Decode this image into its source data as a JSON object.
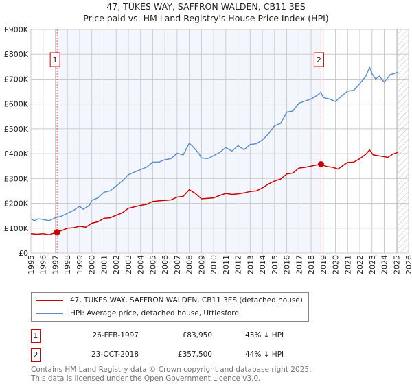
{
  "title": "47, TUKES WAY, SAFFRON WALDEN, CB11 3ES",
  "subtitle": "Price paid vs. HM Land Registry's House Price Index (HPI)",
  "chart_data": {
    "type": "line",
    "xlim": [
      1995,
      2026
    ],
    "ylim": [
      0,
      900000
    ],
    "yticks": [
      {
        "v": 0,
        "label": "£0"
      },
      {
        "v": 100000,
        "label": "£100K"
      },
      {
        "v": 200000,
        "label": "£200K"
      },
      {
        "v": 300000,
        "label": "£300K"
      },
      {
        "v": 400000,
        "label": "£400K"
      },
      {
        "v": 500000,
        "label": "£500K"
      },
      {
        "v": 600000,
        "label": "£600K"
      },
      {
        "v": 700000,
        "label": "£700K"
      },
      {
        "v": 800000,
        "label": "£800K"
      },
      {
        "v": 900000,
        "label": "£900K"
      }
    ],
    "xticks": [
      "1995",
      "1996",
      "1997",
      "1998",
      "1999",
      "2000",
      "2001",
      "2002",
      "2003",
      "2004",
      "2005",
      "2006",
      "2007",
      "2008",
      "2009",
      "2010",
      "2011",
      "2012",
      "2013",
      "2014",
      "2015",
      "2016",
      "2017",
      "2018",
      "2019",
      "2020",
      "2021",
      "2022",
      "2023",
      "2024",
      "2025",
      "2026"
    ],
    "shaded_range": [
      1997.15,
      2018.81
    ],
    "forecast_hatch_from": 2025.1,
    "series": [
      {
        "name": "47, TUKES WAY, SAFFRON WALDEN, CB11 3ES (detached house)",
        "color": "#cc0000",
        "x": [
          1995,
          1995.5,
          1996,
          1996.5,
          1997.15,
          1997.6,
          1998,
          1998.5,
          1999,
          1999.5,
          2000,
          2000.5,
          2001,
          2001.5,
          2002,
          2002.5,
          2003,
          2003.5,
          2004,
          2004.5,
          2005,
          2005.5,
          2006,
          2006.5,
          2007,
          2007.5,
          2008,
          2008.5,
          2009,
          2009.5,
          2010,
          2010.5,
          2011,
          2011.5,
          2012,
          2012.5,
          2013,
          2013.5,
          2014,
          2014.5,
          2015,
          2015.5,
          2016,
          2016.5,
          2017,
          2017.5,
          2018,
          2018.5,
          2018.81,
          2019.3,
          2019.8,
          2020.2,
          2020.6,
          2021,
          2021.5,
          2022,
          2022.5,
          2022.8,
          2023.1,
          2023.5,
          2024,
          2024.3,
          2024.7,
          2025.1
        ],
        "y": [
          78000,
          76000,
          78000,
          74000,
          83950,
          92000,
          100000,
          102000,
          108000,
          104000,
          120000,
          126000,
          140000,
          142000,
          152000,
          162000,
          180000,
          186000,
          192000,
          196000,
          208000,
          210000,
          212000,
          214000,
          225000,
          228000,
          255000,
          240000,
          218000,
          220000,
          222000,
          232000,
          240000,
          236000,
          238000,
          242000,
          248000,
          250000,
          262000,
          278000,
          290000,
          298000,
          318000,
          322000,
          342000,
          345000,
          350000,
          355000,
          357500,
          348000,
          345000,
          338000,
          352000,
          365000,
          366000,
          380000,
          398000,
          415000,
          395000,
          392000,
          388000,
          385000,
          398000,
          405000
        ]
      },
      {
        "name": "HPI: Average price, detached house, Uttlesford",
        "color": "#5b8fd0",
        "x": [
          1995,
          1995.3,
          1995.6,
          1996,
          1996.5,
          1997,
          1997.5,
          1998,
          1998.5,
          1999,
          1999.3,
          1999.8,
          2000,
          2000.5,
          2001,
          2001.5,
          2002,
          2002.5,
          2003,
          2003.5,
          2004,
          2004.5,
          2005,
          2005.5,
          2006,
          2006.5,
          2007,
          2007.5,
          2008,
          2008.3,
          2008.8,
          2009,
          2009.5,
          2010,
          2010.5,
          2011,
          2011.5,
          2012,
          2012.5,
          2013,
          2013.5,
          2014,
          2014.5,
          2015,
          2015.5,
          2016,
          2016.5,
          2017,
          2017.5,
          2018,
          2018.5,
          2018.8,
          2019,
          2019.5,
          2020,
          2020.5,
          2021,
          2021.5,
          2022,
          2022.5,
          2022.8,
          2023,
          2023.3,
          2023.6,
          2024,
          2024.5,
          2024.8,
          2025.1
        ],
        "y": [
          138000,
          130000,
          138000,
          135000,
          130000,
          142000,
          148000,
          160000,
          172000,
          188000,
          176000,
          192000,
          212000,
          222000,
          245000,
          250000,
          270000,
          290000,
          315000,
          326000,
          336000,
          346000,
          366000,
          366000,
          376000,
          380000,
          402000,
          395000,
          442000,
          428000,
          400000,
          383000,
          380000,
          392000,
          405000,
          425000,
          410000,
          432000,
          416000,
          437000,
          440000,
          455000,
          480000,
          512000,
          522000,
          567000,
          572000,
          603000,
          612000,
          620000,
          635000,
          647000,
          626000,
          620000,
          610000,
          632000,
          652000,
          655000,
          682000,
          712000,
          748000,
          722000,
          700000,
          712000,
          688000,
          718000,
          722000,
          728000
        ]
      }
    ],
    "sales": [
      {
        "label": "1",
        "x": 1997.15,
        "y": 83950
      },
      {
        "label": "2",
        "x": 2018.81,
        "y": 357500
      }
    ]
  },
  "legend": {
    "red": "47, TUKES WAY, SAFFRON WALDEN, CB11 3ES (detached house)",
    "blue": "HPI: Average price, detached house, Uttlesford"
  },
  "transactions": [
    {
      "num": "1",
      "date": "26-FEB-1997",
      "price": "£83,950",
      "hpi": "43% ↓ HPI"
    },
    {
      "num": "2",
      "date": "23-OCT-2018",
      "price": "£357,500",
      "hpi": "44% ↓ HPI"
    }
  ],
  "footer": {
    "line1": "Contains HM Land Registry data © Crown copyright and database right 2025.",
    "line2": "This data is licensed under the Open Government Licence v3.0."
  }
}
